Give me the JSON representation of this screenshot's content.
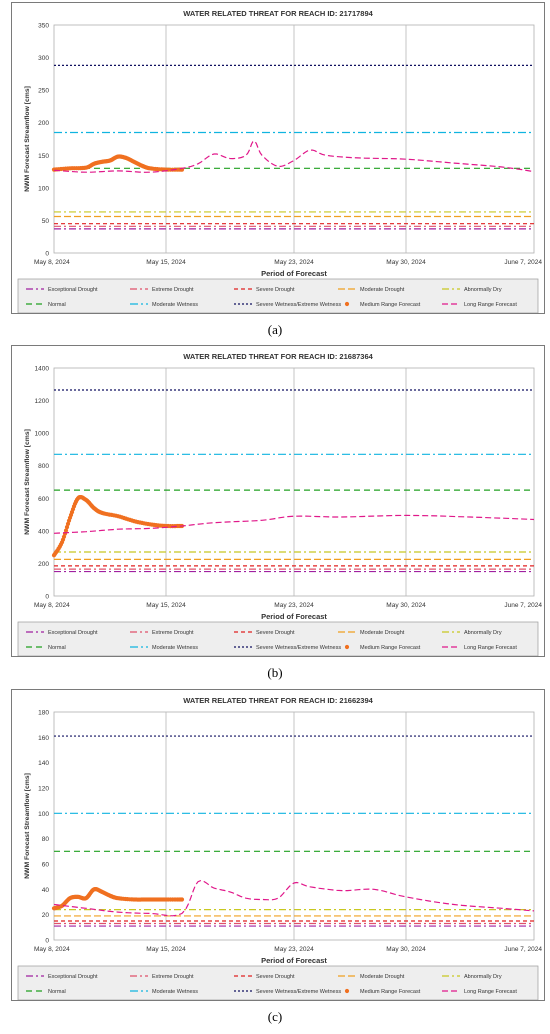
{
  "legend_entries": [
    {
      "name": "Exceptional Drought",
      "color": "#a020a0",
      "dash": "7 3 2 3"
    },
    {
      "name": "Extreme Drought",
      "color": "#e0506a",
      "dash": "7 3 2 3"
    },
    {
      "name": "Severe Drought",
      "color": "#e02020",
      "dash": "4 3"
    },
    {
      "name": "Moderate Drought",
      "color": "#f0a020",
      "dash": "7 3"
    },
    {
      "name": "Abnormally Dry",
      "color": "#c8c820",
      "dash": "7 3 2 3"
    },
    {
      "name": "Normal",
      "color": "#20a020",
      "dash": "6 4"
    },
    {
      "name": "Moderate Wetness",
      "color": "#10b4e0",
      "dash": "8 3 2 3"
    },
    {
      "name": "Severe Wetness/Extreme Wetness",
      "color": "#101060",
      "dash": "2 2"
    },
    {
      "name": "Medium Range Forecast",
      "color": "#f07020",
      "marker": true
    },
    {
      "name": "Long Range Forecast",
      "color": "#e0188a",
      "dash": "6 3"
    }
  ],
  "chart_data": [
    {
      "type": "line",
      "panel_label": "(a)",
      "title": "WATER RELATED THREAT FOR REACH ID: 21717894",
      "xlabel": "Period of Forecast",
      "ylabel": "NWM Forecast Streamflow [cms]",
      "ylim": [
        0,
        350
      ],
      "yticks": [
        0,
        50,
        100,
        150,
        200,
        250,
        300,
        350
      ],
      "x_domain": [
        "2024-05-08",
        "2024-06-07"
      ],
      "xticks": [
        {
          "date": "2024-05-08",
          "label": "May 8, 2024"
        },
        {
          "date": "2024-05-15",
          "label": "May 15, 2024"
        },
        {
          "date": "2024-05-23",
          "label": "May 23, 2024"
        },
        {
          "date": "2024-05-30",
          "label": "May 30, 2024"
        },
        {
          "date": "2024-06-07",
          "label": "June 7, 2024"
        }
      ],
      "thresholds": {
        "Exceptional Drought": 37,
        "Extreme Drought": 41,
        "Severe Drought": 45,
        "Moderate Drought": 56,
        "Abnormally Dry": 63,
        "Normal": 130,
        "Moderate Wetness": 185,
        "Severe Wetness/Extreme Wetness": 288
      },
      "series": [
        {
          "name": "Medium Range Forecast",
          "x": [
            "2024-05-08",
            "2024-05-09",
            "2024-05-10",
            "2024-05-10 12:00",
            "2024-05-11",
            "2024-05-11 12:00",
            "2024-05-12",
            "2024-05-12 12:00",
            "2024-05-13",
            "2024-05-13 12:00",
            "2024-05-14",
            "2024-05-15",
            "2024-05-16"
          ],
          "y": [
            128,
            130,
            131,
            137,
            140,
            142,
            148,
            146,
            140,
            134,
            130,
            128,
            128
          ]
        },
        {
          "name": "Long Range Forecast",
          "x": [
            "2024-05-08",
            "2024-05-10",
            "2024-05-12",
            "2024-05-14",
            "2024-05-16",
            "2024-05-17",
            "2024-05-18",
            "2024-05-19",
            "2024-05-20",
            "2024-05-20 12:00",
            "2024-05-21",
            "2024-05-22",
            "2024-05-23",
            "2024-05-24",
            "2024-05-25",
            "2024-05-27",
            "2024-05-30",
            "2024-06-02",
            "2024-06-05",
            "2024-06-07"
          ],
          "y": [
            127,
            124,
            126,
            124,
            130,
            137,
            152,
            145,
            150,
            172,
            150,
            133,
            142,
            158,
            150,
            146,
            144,
            138,
            132,
            125
          ]
        }
      ]
    },
    {
      "type": "line",
      "panel_label": "(b)",
      "title": "WATER RELATED THREAT FOR REACH ID: 21687364",
      "xlabel": "Period of Forecast",
      "ylabel": "NWM Forecast Streamflow [cms]",
      "ylim": [
        0,
        1400
      ],
      "yticks": [
        0,
        200,
        400,
        600,
        800,
        1000,
        1200,
        1400
      ],
      "x_domain": [
        "2024-05-08",
        "2024-06-07"
      ],
      "xticks": [
        {
          "date": "2024-05-08",
          "label": "May 8, 2024"
        },
        {
          "date": "2024-05-15",
          "label": "May 15, 2024"
        },
        {
          "date": "2024-05-23",
          "label": "May 23, 2024"
        },
        {
          "date": "2024-05-30",
          "label": "May 30, 2024"
        },
        {
          "date": "2024-06-07",
          "label": "June 7, 2024"
        }
      ],
      "thresholds": {
        "Exceptional Drought": 150,
        "Extreme Drought": 165,
        "Severe Drought": 185,
        "Moderate Drought": 225,
        "Abnormally Dry": 270,
        "Normal": 650,
        "Moderate Wetness": 870,
        "Severe Wetness/Extreme Wetness": 1265
      },
      "series": [
        {
          "name": "Medium Range Forecast",
          "x": [
            "2024-05-08",
            "2024-05-08 12:00",
            "2024-05-09",
            "2024-05-09 12:00",
            "2024-05-10",
            "2024-05-10 12:00",
            "2024-05-11",
            "2024-05-12",
            "2024-05-13",
            "2024-05-14",
            "2024-05-15",
            "2024-05-16"
          ],
          "y": [
            250,
            330,
            480,
            600,
            590,
            540,
            510,
            490,
            460,
            440,
            430,
            430
          ]
        },
        {
          "name": "Long Range Forecast",
          "x": [
            "2024-05-08",
            "2024-05-10",
            "2024-05-12",
            "2024-05-14",
            "2024-05-16",
            "2024-05-18",
            "2024-05-21",
            "2024-05-23",
            "2024-05-26",
            "2024-05-30",
            "2024-06-03",
            "2024-06-07"
          ],
          "y": [
            385,
            395,
            410,
            415,
            430,
            450,
            465,
            490,
            485,
            495,
            485,
            470
          ]
        }
      ]
    },
    {
      "type": "line",
      "panel_label": "(c)",
      "title": "WATER RELATED THREAT FOR REACH ID: 21662394",
      "xlabel": "Period of Forecast",
      "ylabel": "NWM Forecast Streamflow [cms]",
      "ylim": [
        0,
        180
      ],
      "yticks": [
        0,
        20,
        40,
        60,
        80,
        100,
        120,
        140,
        160,
        180
      ],
      "x_domain": [
        "2024-05-08",
        "2024-06-07"
      ],
      "xticks": [
        {
          "date": "2024-05-08",
          "label": "May 8, 2024"
        },
        {
          "date": "2024-05-15",
          "label": "May 15, 2024"
        },
        {
          "date": "2024-05-23",
          "label": "May 23, 2024"
        },
        {
          "date": "2024-05-30",
          "label": "May 30, 2024"
        },
        {
          "date": "2024-06-07",
          "label": "June 7, 2024"
        }
      ],
      "thresholds": {
        "Exceptional Drought": 11,
        "Extreme Drought": 13,
        "Severe Drought": 15,
        "Moderate Drought": 19,
        "Abnormally Dry": 24,
        "Normal": 70,
        "Moderate Wetness": 100,
        "Severe Wetness/Extreme Wetness": 161
      },
      "series": [
        {
          "name": "Medium Range Forecast",
          "x": [
            "2024-05-08",
            "2024-05-08 12:00",
            "2024-05-09",
            "2024-05-09 12:00",
            "2024-05-10",
            "2024-05-10 12:00",
            "2024-05-11",
            "2024-05-11 12:00",
            "2024-05-12",
            "2024-05-13",
            "2024-05-14",
            "2024-05-15",
            "2024-05-16"
          ],
          "y": [
            25,
            27,
            33,
            34,
            33,
            40,
            38,
            35,
            33,
            32,
            32,
            32,
            32
          ]
        },
        {
          "name": "Long Range Forecast",
          "x": [
            "2024-05-08",
            "2024-05-10",
            "2024-05-12",
            "2024-05-14",
            "2024-05-16",
            "2024-05-17",
            "2024-05-18",
            "2024-05-19",
            "2024-05-20",
            "2024-05-21",
            "2024-05-22",
            "2024-05-23",
            "2024-05-24",
            "2024-05-26",
            "2024-05-28",
            "2024-05-30",
            "2024-06-02",
            "2024-06-05",
            "2024-06-07"
          ],
          "y": [
            28,
            25,
            22,
            21,
            21,
            46,
            41,
            38,
            33,
            32,
            33,
            45,
            42,
            39,
            40,
            34,
            28,
            25,
            23
          ]
        }
      ]
    }
  ]
}
